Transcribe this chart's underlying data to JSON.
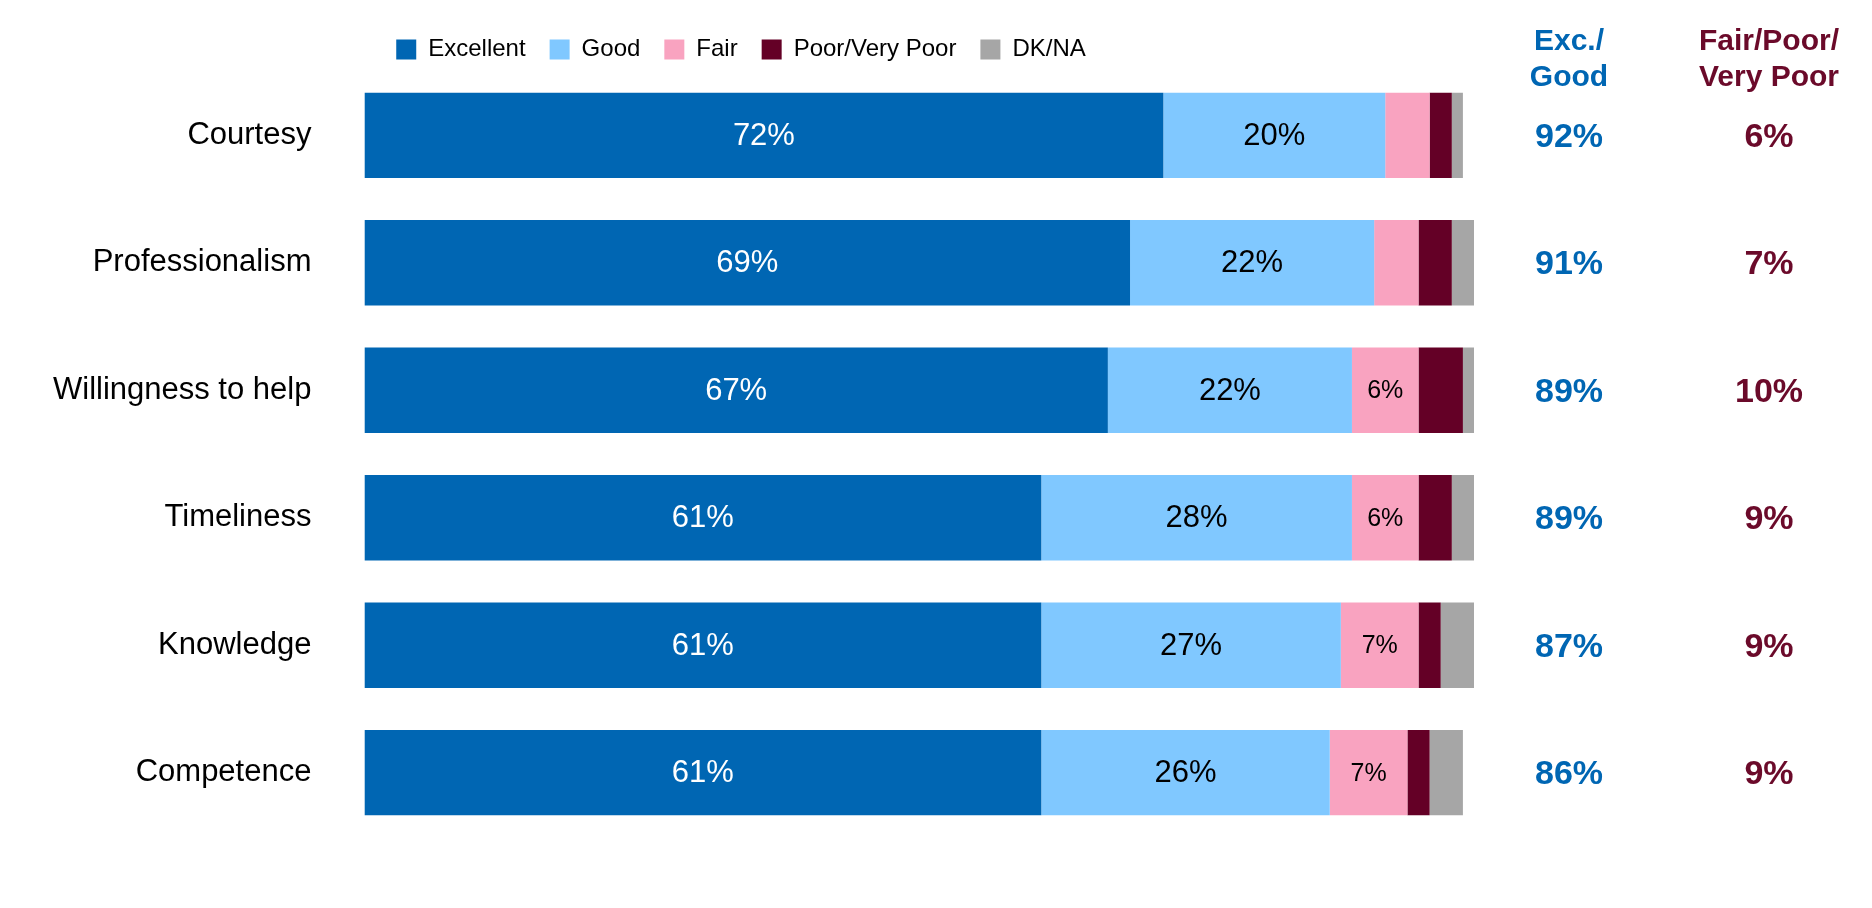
{
  "chart_data": {
    "type": "bar",
    "orientation": "horizontal",
    "stacked": true,
    "legend": "top",
    "tick_labels": "y",
    "xlim": [
      0,
      100
    ],
    "categories": [
      "Courtesy",
      "Professionalism",
      "Willingness to help",
      "Timeliness",
      "Knowledge",
      "Competence"
    ],
    "series": [
      {
        "name": "Excellent",
        "color": "#0066b3",
        "values": [
          72,
          69,
          67,
          61,
          61,
          61
        ],
        "value_labels": [
          "72%",
          "69%",
          "67%",
          "61%",
          "61%",
          "61%"
        ]
      },
      {
        "name": "Good",
        "color": "#80c8ff",
        "values": [
          20,
          22,
          22,
          28,
          27,
          26
        ],
        "value_labels": [
          "20%",
          "22%",
          "22%",
          "28%",
          "27%",
          "26%"
        ]
      },
      {
        "name": "Fair",
        "color": "#f9a3c0",
        "values": [
          4,
          4,
          6,
          6,
          7,
          7
        ],
        "value_labels": [
          null,
          null,
          "6%",
          "6%",
          "7%",
          "7%"
        ]
      },
      {
        "name": "Poor/Very Poor",
        "color": "#640026",
        "values": [
          2,
          3,
          4,
          3,
          2,
          2
        ]
      },
      {
        "name": "DK/NA",
        "color": "#a6a6a6",
        "values": [
          1,
          2,
          1,
          2,
          3,
          3
        ]
      }
    ],
    "annotations": [
      "Exc./\nGood",
      "Fair/Poor/\nVery Poor",
      "92%",
      "6%",
      "91%",
      "7%",
      "89%",
      "10%",
      "89%",
      "9%",
      "87%",
      "9%",
      "86%",
      "9%"
    ]
  }
}
